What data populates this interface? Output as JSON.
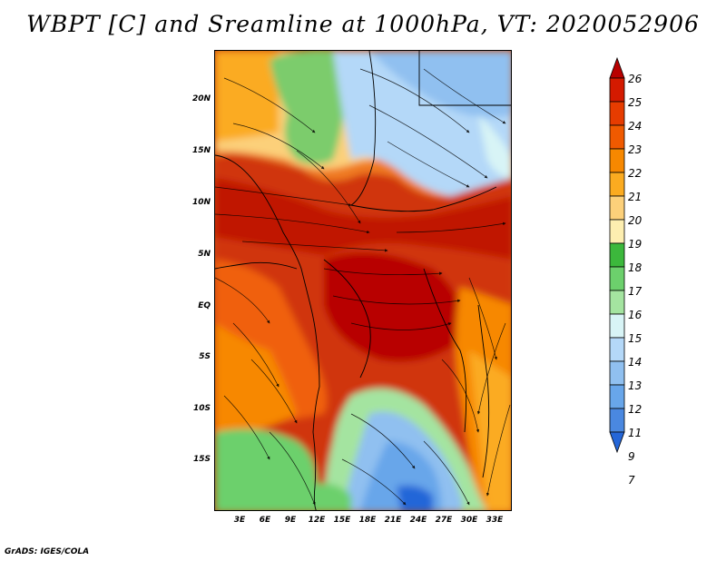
{
  "title": "WBPT [C] and Sreamline at 1000hPa, VT: 2020052906",
  "footer": "GrADS: IGES/COLA",
  "map": {
    "lat_labels": [
      "20N",
      "15N",
      "10N",
      "5N",
      "EQ",
      "5S",
      "10S",
      "15S"
    ],
    "lon_labels": [
      "3E",
      "6E",
      "9E",
      "12E",
      "15E",
      "18E",
      "21E",
      "24E",
      "27E",
      "30E",
      "33E"
    ]
  },
  "colorbar": {
    "levels": [
      "26",
      "25",
      "24",
      "23",
      "22",
      "21",
      "20",
      "19",
      "18",
      "17",
      "16",
      "15",
      "14",
      "13",
      "12",
      "11",
      "9",
      "7"
    ],
    "colors": [
      "#b80000",
      "#d41a00",
      "#e63c00",
      "#f05a00",
      "#f78800",
      "#fbab20",
      "#fcd07a",
      "#fdeeb0",
      "#3cb83c",
      "#6cd06c",
      "#a4e4a0",
      "#d8f4f6",
      "#b4d8f8",
      "#90c0f0",
      "#68a6ea",
      "#4a88e0",
      "#2466d8"
    ]
  }
}
